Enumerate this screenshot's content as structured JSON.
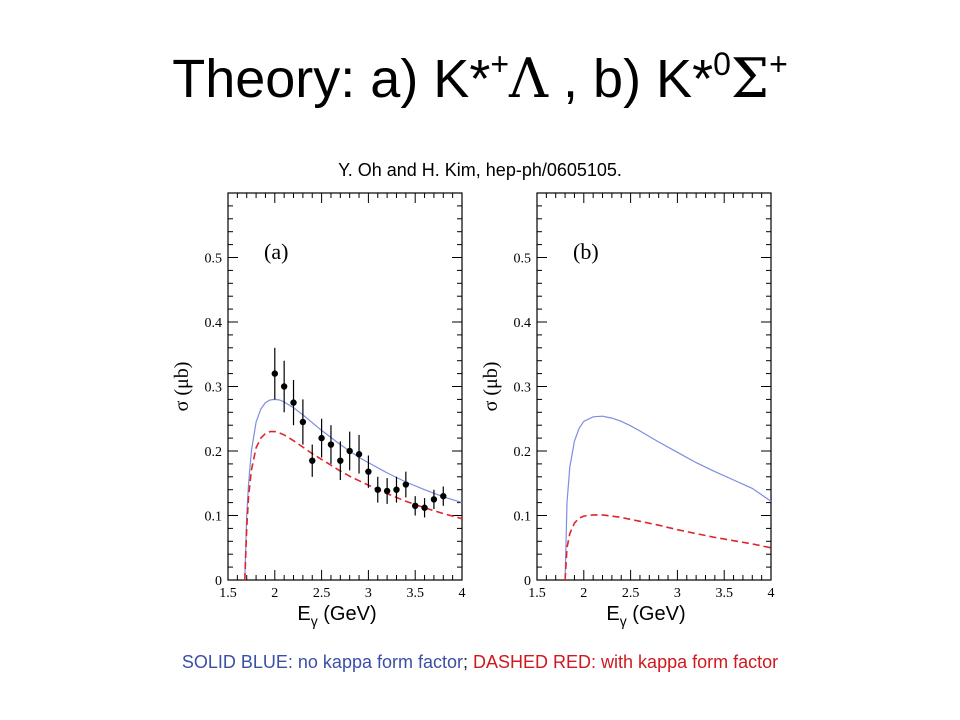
{
  "title": {
    "prefix": "Theory: a) K*",
    "sup_a": "+",
    "greek_a": "Λ",
    "middle": " , b) K*",
    "sup_b1": "0",
    "greek_b": "Σ",
    "sup_b2": "+"
  },
  "citation": "Y. Oh and H. Kim, hep-ph/0605105.",
  "caption": {
    "solid_label": "SOLID BLUE:",
    "solid_text": " no kappa form factor",
    "separator": ";",
    "dashed_label": " DASHED RED:",
    "dashed_text": " with kappa form factor"
  },
  "colors": {
    "solid": "#7d8de0",
    "dashed": "#e0252a",
    "points": "#000000"
  },
  "chart_data": [
    {
      "type": "line",
      "panel_label": "(a)",
      "xlabel": "E",
      "xlabel_sub": "γ",
      "xlabel_unit": "(GeV)",
      "ylabel": "σ (μb)",
      "xlim": [
        1.5,
        4
      ],
      "ylim": [
        0,
        0.6
      ],
      "xticks": [
        "1.5",
        "2",
        "2.5",
        "3",
        "3.5",
        "4"
      ],
      "yticks": [
        "0",
        "0.1",
        "0.2",
        "0.3",
        "0.4",
        "0.5"
      ],
      "series": [
        {
          "style": "solid",
          "x": [
            1.68,
            1.7,
            1.72,
            1.75,
            1.8,
            1.85,
            1.9,
            1.95,
            2.0,
            2.05,
            2.1,
            2.2,
            2.3,
            2.4,
            2.5,
            2.6,
            2.7,
            2.8,
            2.9,
            3.0,
            3.2,
            3.4,
            3.6,
            3.8,
            4.0
          ],
          "y": [
            0.0,
            0.1,
            0.15,
            0.2,
            0.245,
            0.265,
            0.275,
            0.279,
            0.28,
            0.279,
            0.276,
            0.267,
            0.256,
            0.244,
            0.232,
            0.221,
            0.21,
            0.2,
            0.19,
            0.182,
            0.166,
            0.152,
            0.14,
            0.129,
            0.12
          ]
        },
        {
          "style": "dashed",
          "x": [
            1.68,
            1.7,
            1.72,
            1.75,
            1.8,
            1.85,
            1.9,
            1.95,
            2.0,
            2.05,
            2.1,
            2.2,
            2.3,
            2.4,
            2.5,
            2.6,
            2.7,
            2.8,
            2.9,
            3.0,
            3.2,
            3.4,
            3.6,
            3.8,
            4.0
          ],
          "y": [
            0.0,
            0.08,
            0.13,
            0.17,
            0.205,
            0.22,
            0.227,
            0.23,
            0.23,
            0.228,
            0.225,
            0.216,
            0.206,
            0.196,
            0.187,
            0.178,
            0.169,
            0.161,
            0.154,
            0.147,
            0.134,
            0.122,
            0.112,
            0.103,
            0.095
          ]
        }
      ],
      "points": {
        "x": [
          2.0,
          2.1,
          2.2,
          2.3,
          2.4,
          2.5,
          2.6,
          2.7,
          2.8,
          2.9,
          3.0,
          3.1,
          3.2,
          3.3,
          3.4,
          3.5,
          3.6,
          3.7,
          3.8
        ],
        "y": [
          0.32,
          0.3,
          0.275,
          0.245,
          0.185,
          0.22,
          0.21,
          0.185,
          0.2,
          0.195,
          0.168,
          0.14,
          0.138,
          0.14,
          0.148,
          0.115,
          0.112,
          0.125,
          0.13
        ],
        "yerr": [
          0.04,
          0.04,
          0.035,
          0.035,
          0.025,
          0.03,
          0.03,
          0.03,
          0.03,
          0.03,
          0.025,
          0.02,
          0.02,
          0.02,
          0.02,
          0.015,
          0.015,
          0.015,
          0.015
        ]
      }
    },
    {
      "type": "line",
      "panel_label": "(b)",
      "xlabel": "E",
      "xlabel_sub": "γ",
      "xlabel_unit": "(GeV)",
      "ylabel": "σ (μb)",
      "xlim": [
        1.5,
        4
      ],
      "ylim": [
        0,
        0.6
      ],
      "xticks": [
        "1.5",
        "2",
        "2.5",
        "3",
        "3.5",
        "4"
      ],
      "yticks": [
        "0",
        "0.1",
        "0.2",
        "0.3",
        "0.4",
        "0.5"
      ],
      "series": [
        {
          "style": "solid",
          "x": [
            1.8,
            1.82,
            1.85,
            1.9,
            1.95,
            2.0,
            2.1,
            2.2,
            2.3,
            2.4,
            2.5,
            2.6,
            2.8,
            3.0,
            3.2,
            3.4,
            3.6,
            3.8,
            4.0
          ],
          "y": [
            0.0,
            0.12,
            0.175,
            0.215,
            0.235,
            0.246,
            0.253,
            0.254,
            0.251,
            0.246,
            0.239,
            0.231,
            0.214,
            0.198,
            0.182,
            0.168,
            0.155,
            0.142,
            0.122
          ]
        },
        {
          "style": "dashed",
          "x": [
            1.8,
            1.82,
            1.85,
            1.9,
            1.95,
            2.0,
            2.1,
            2.2,
            2.3,
            2.4,
            2.5,
            2.6,
            2.8,
            3.0,
            3.2,
            3.4,
            3.6,
            3.8,
            4.0
          ],
          "y": [
            0.0,
            0.05,
            0.072,
            0.088,
            0.096,
            0.099,
            0.101,
            0.101,
            0.099,
            0.097,
            0.094,
            0.091,
            0.085,
            0.078,
            0.072,
            0.066,
            0.061,
            0.056,
            0.05
          ]
        }
      ]
    }
  ]
}
